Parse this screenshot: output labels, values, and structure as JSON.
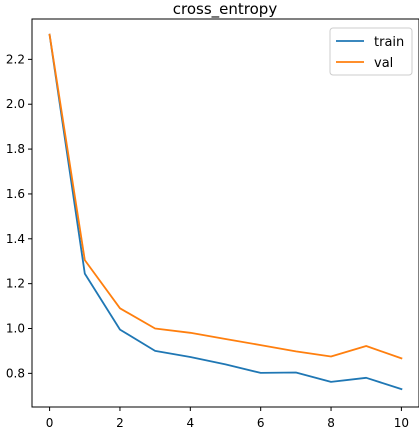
{
  "chart_data": {
    "type": "line",
    "title": "cross_entropy",
    "xlabel": "",
    "ylabel": "",
    "x": [
      0,
      1,
      2,
      3,
      4,
      5,
      6,
      7,
      8,
      9,
      10
    ],
    "xlim": [
      -0.5,
      10.5
    ],
    "ylim": [
      0.65,
      2.38
    ],
    "xticks": [
      0,
      2,
      4,
      6,
      8,
      10
    ],
    "xtick_labels": [
      "0",
      "2",
      "4",
      "6",
      "8",
      "10"
    ],
    "yticks": [
      0.8,
      1.0,
      1.2,
      1.4,
      1.6,
      1.8,
      2.0,
      2.2
    ],
    "ytick_labels": [
      "0.8",
      "1.0",
      "1.2",
      "1.4",
      "1.6",
      "1.8",
      "2.0",
      "2.2"
    ],
    "grid": false,
    "legend_position": "top-right",
    "series": [
      {
        "name": "train",
        "color": "#1f77b4",
        "values": [
          2.31,
          1.245,
          0.995,
          0.9,
          0.873,
          0.84,
          0.802,
          0.804,
          0.762,
          0.78,
          0.73
        ]
      },
      {
        "name": "val",
        "color": "#ff7f0e",
        "values": [
          2.31,
          1.305,
          1.09,
          1.0,
          0.981,
          0.953,
          0.926,
          0.898,
          0.875,
          0.922,
          0.867
        ]
      }
    ]
  }
}
